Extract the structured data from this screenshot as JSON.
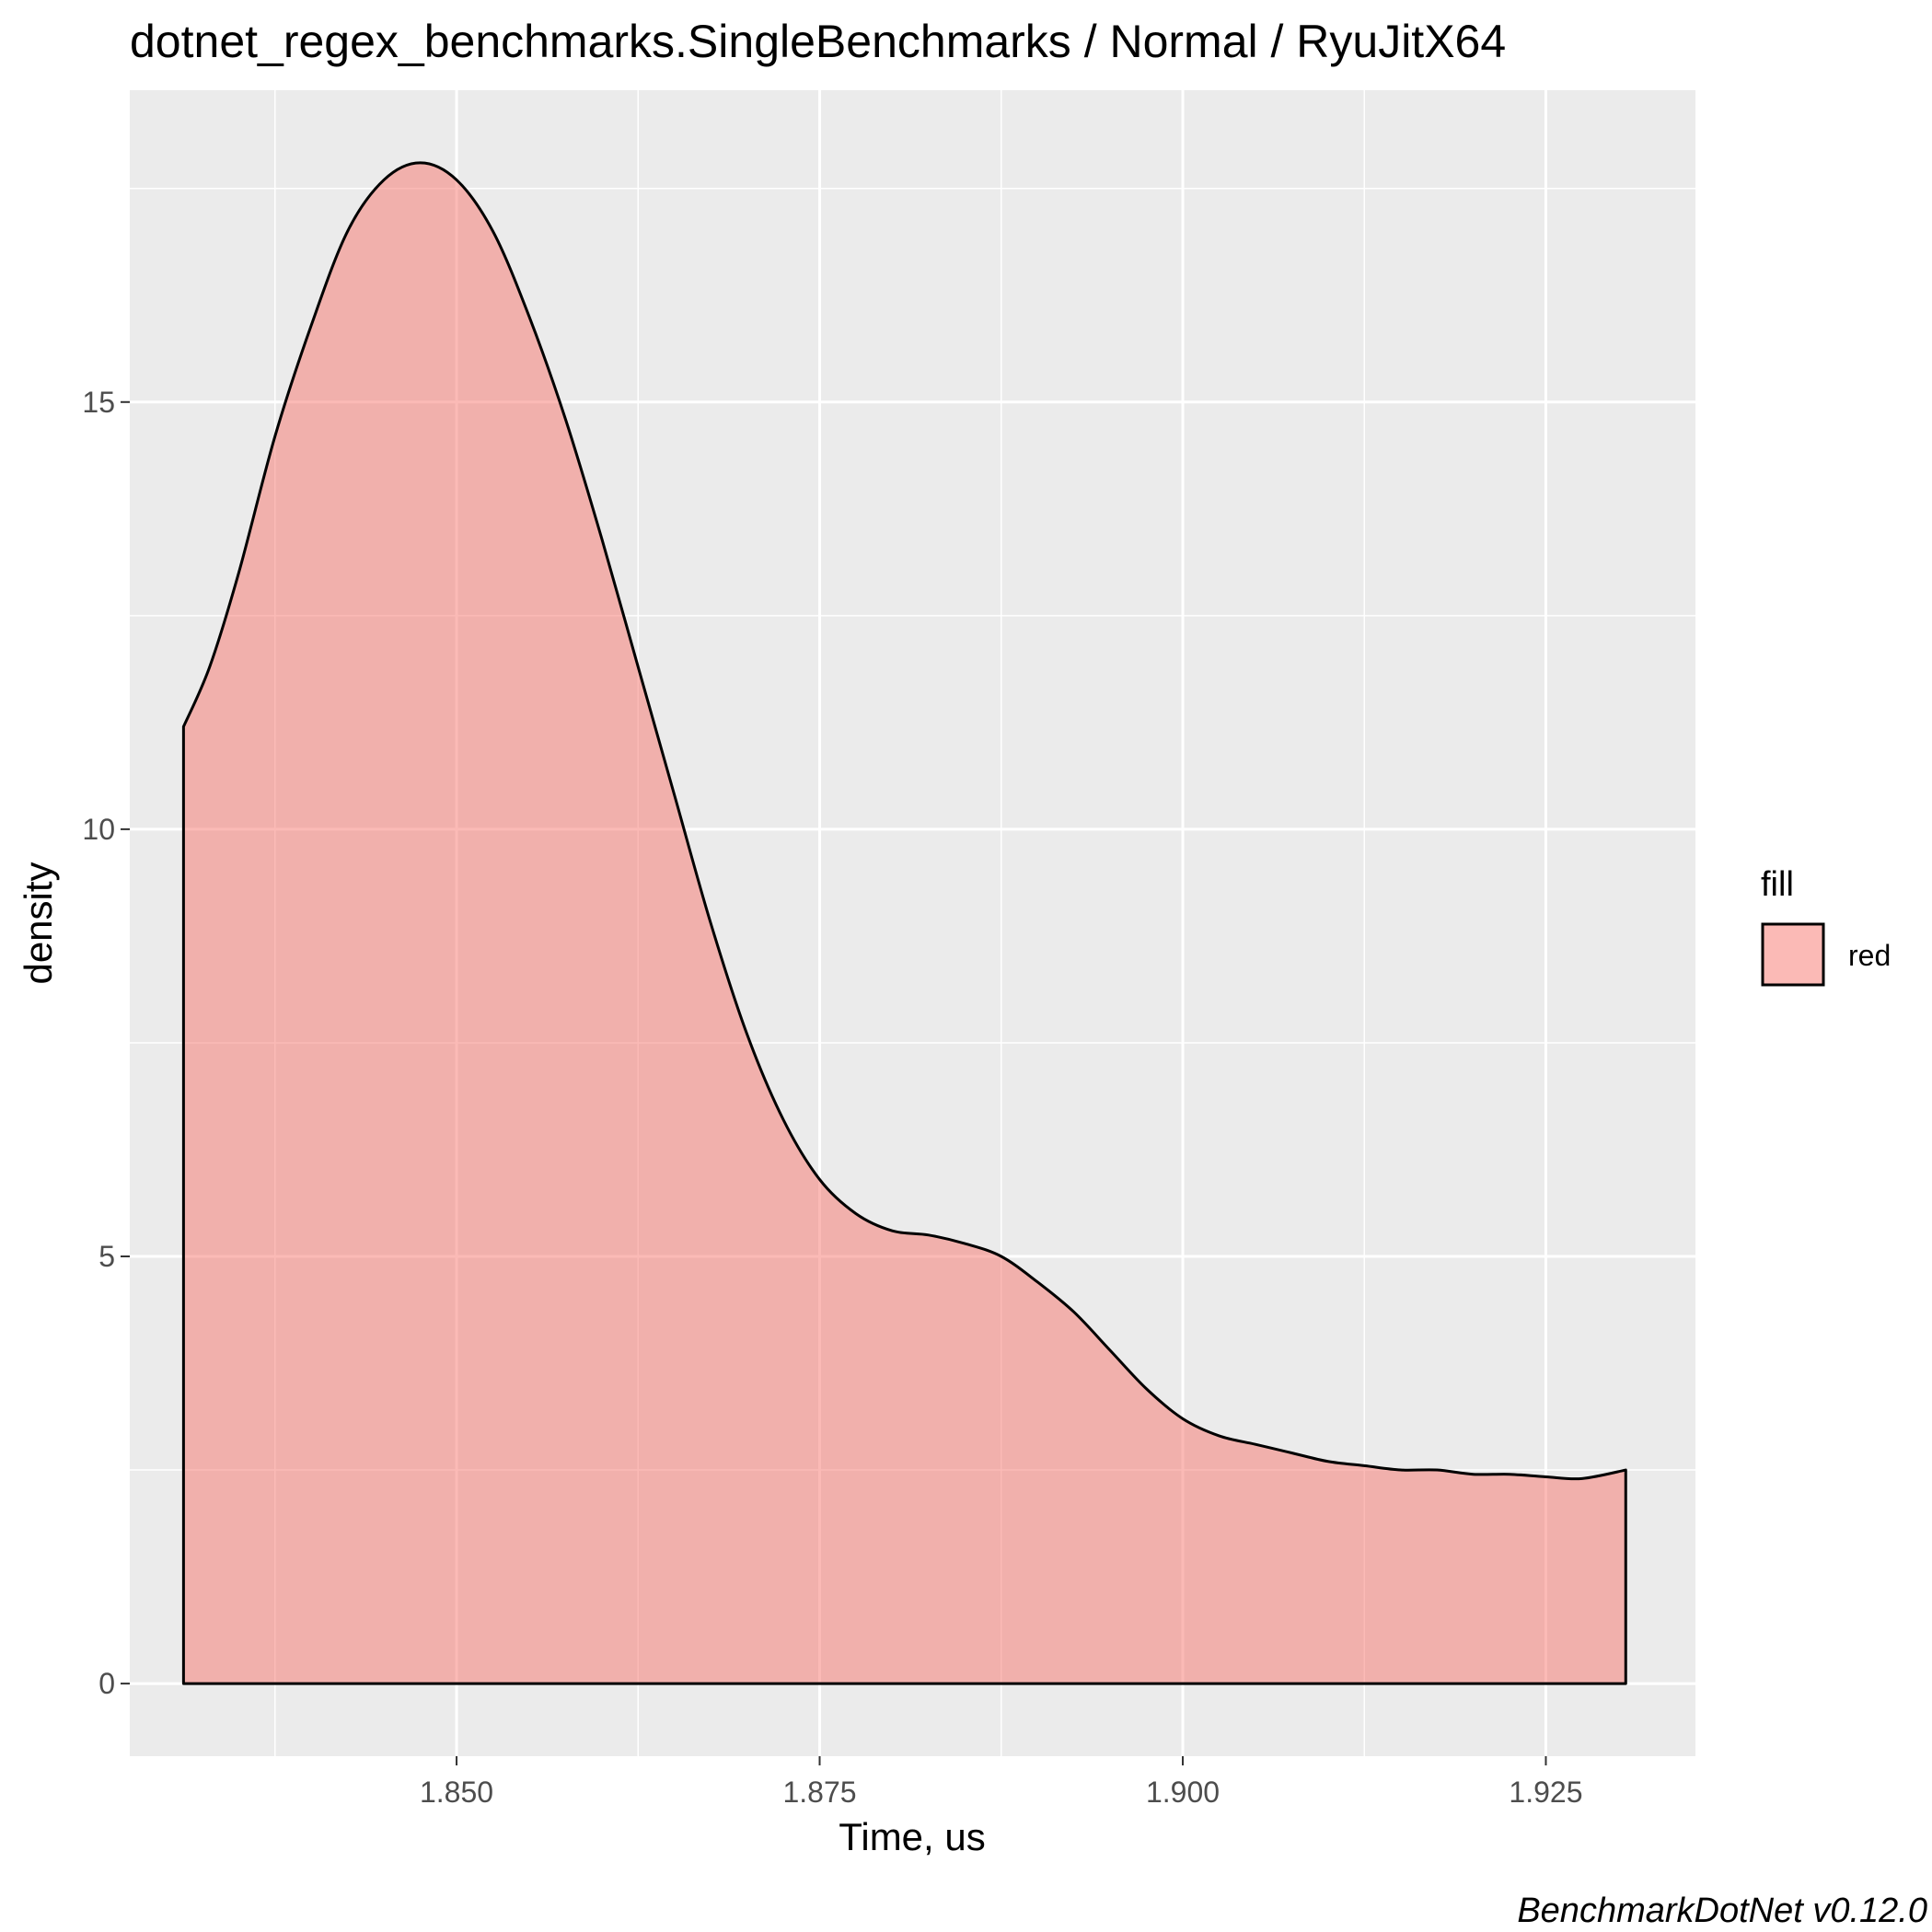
{
  "chart_data": {
    "type": "area",
    "title": "dotnet_regex_benchmarks.SingleBenchmarks / Normal / RyuJitX64",
    "xlabel": "Time, us",
    "ylabel": "density",
    "caption": "BenchmarkDotNet v0.12.0",
    "xlim": [
      1.8275,
      1.9353
    ],
    "ylim": [
      -0.85,
      18.65
    ],
    "x_ticks": [
      {
        "value": 1.85,
        "label": "1.850"
      },
      {
        "value": 1.875,
        "label": "1.875"
      },
      {
        "value": 1.9,
        "label": "1.900"
      },
      {
        "value": 1.925,
        "label": "1.925"
      }
    ],
    "y_ticks": [
      {
        "value": 0,
        "label": "0"
      },
      {
        "value": 5,
        "label": "5"
      },
      {
        "value": 10,
        "label": "10"
      },
      {
        "value": 15,
        "label": "15"
      }
    ],
    "grid": true,
    "legend": {
      "title": "fill",
      "position": "right",
      "entries": [
        {
          "label": "red",
          "color": "#f8766d"
        }
      ]
    },
    "series": [
      {
        "name": "red",
        "fill": "#f8766d",
        "fill_opacity": 0.5,
        "stroke": "#000000",
        "x": [
          1.8312,
          1.833,
          1.835,
          1.8375,
          1.84,
          1.8425,
          1.845,
          1.8475,
          1.85,
          1.8525,
          1.855,
          1.8575,
          1.86,
          1.8625,
          1.865,
          1.8675,
          1.87,
          1.8725,
          1.875,
          1.8775,
          1.88,
          1.8825,
          1.885,
          1.8875,
          1.89,
          1.8925,
          1.895,
          1.8975,
          1.9,
          1.9025,
          1.905,
          1.9075,
          1.91,
          1.9125,
          1.915,
          1.9175,
          1.92,
          1.9225,
          1.925,
          1.9275,
          1.9305
        ],
        "y": [
          11.2,
          11.9,
          13.0,
          14.6,
          15.9,
          17.0,
          17.6,
          17.8,
          17.6,
          17.0,
          16.0,
          14.8,
          13.4,
          11.9,
          10.4,
          8.9,
          7.6,
          6.6,
          5.9,
          5.5,
          5.3,
          5.25,
          5.15,
          5.0,
          4.7,
          4.35,
          3.9,
          3.45,
          3.1,
          2.9,
          2.8,
          2.7,
          2.6,
          2.55,
          2.5,
          2.5,
          2.45,
          2.45,
          2.42,
          2.4,
          2.5
        ]
      }
    ]
  }
}
